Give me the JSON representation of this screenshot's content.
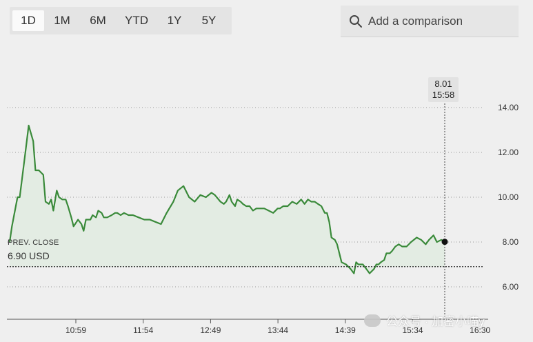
{
  "ranges": [
    "1D",
    "1M",
    "6M",
    "YTD",
    "1Y",
    "5Y"
  ],
  "selected_range": "1D",
  "search": {
    "placeholder": "Add a comparison",
    "icon": "search-icon"
  },
  "tooltip": {
    "value": "8.01",
    "time": "15:58"
  },
  "prev_close": {
    "label": "PREV. CLOSE",
    "value": "6.90 USD"
  },
  "watermark": "公众号 · 加密小喵y",
  "colors": {
    "line": "#3a8a3a",
    "fill": "#e3ece3",
    "background": "#efefef",
    "grid": "#9a9a9a"
  },
  "chart_data": {
    "type": "line",
    "x_ticks": [
      "10:59",
      "11:54",
      "12:49",
      "13:44",
      "14:39",
      "15:34",
      "16:30"
    ],
    "y_ticks": [
      "14.00",
      "12.00",
      "10.00",
      "8.00",
      "6.00"
    ],
    "ylim": [
      4.6,
      14.6
    ],
    "prev_close": 6.9,
    "last_point": {
      "x": "15:58",
      "y": 8.01
    },
    "series": [
      {
        "x": [
          "09:30",
          "09:32",
          "09:37",
          "09:39",
          "09:44",
          "09:47",
          "09:51",
          "09:53",
          "09:56",
          "10:00",
          "10:02",
          "10:05",
          "10:07",
          "10:09",
          "10:12",
          "10:14",
          "10:17",
          "10:20",
          "10:22",
          "10:25",
          "10:27",
          "10:31",
          "10:34",
          "10:36",
          "10:38",
          "10:42",
          "10:44",
          "10:47",
          "10:49",
          "10:52",
          "10:54",
          "10:57",
          "11:01",
          "11:04",
          "11:06",
          "11:09",
          "11:12",
          "11:16",
          "11:20",
          "11:25",
          "11:30",
          "11:35",
          "11:40",
          "11:45",
          "11:50",
          "11:56",
          "12:00",
          "12:05",
          "12:10",
          "12:15",
          "12:20",
          "12:25",
          "12:30",
          "12:33",
          "12:38",
          "12:41",
          "12:43",
          "12:46",
          "12:48",
          "12:51",
          "12:53",
          "12:56",
          "12:58",
          "13:01",
          "13:04",
          "13:07",
          "13:10",
          "13:13",
          "13:17",
          "13:21",
          "13:25",
          "13:29",
          "13:31",
          "13:34",
          "13:38",
          "13:42",
          "13:46",
          "13:50",
          "13:53",
          "13:56",
          "13:59",
          "14:02",
          "14:05",
          "14:08",
          "14:11",
          "14:13",
          "14:15",
          "14:17",
          "14:20",
          "14:22",
          "14:26",
          "14:30",
          "14:34",
          "14:37",
          "14:39",
          "14:41",
          "14:45",
          "14:48",
          "14:51",
          "14:55",
          "14:57",
          "14:59",
          "15:01",
          "15:04",
          "15:06",
          "15:09",
          "15:11",
          "15:14",
          "15:17",
          "15:20",
          "15:24",
          "15:28",
          "15:33",
          "15:37",
          "15:41",
          "15:44",
          "15:48",
          "15:51",
          "15:55",
          "15:58"
        ],
        "y": [
          8.0,
          8.7,
          10.0,
          10.0,
          12.0,
          13.2,
          12.5,
          11.2,
          11.2,
          11.0,
          9.8,
          9.7,
          9.9,
          9.4,
          10.3,
          10.0,
          9.9,
          9.9,
          9.6,
          9.1,
          8.7,
          9.0,
          8.8,
          8.5,
          9.0,
          9.0,
          9.2,
          9.1,
          9.4,
          9.3,
          9.1,
          9.1,
          9.2,
          9.3,
          9.3,
          9.2,
          9.3,
          9.2,
          9.2,
          9.1,
          9.0,
          9.0,
          8.9,
          8.8,
          9.3,
          9.8,
          10.3,
          10.5,
          10.0,
          9.8,
          10.1,
          10.0,
          10.2,
          10.1,
          9.8,
          9.7,
          9.8,
          10.1,
          9.8,
          9.6,
          9.9,
          9.8,
          9.7,
          9.6,
          9.6,
          9.4,
          9.5,
          9.5,
          9.5,
          9.4,
          9.3,
          9.5,
          9.5,
          9.6,
          9.6,
          9.8,
          9.7,
          9.9,
          9.7,
          9.9,
          9.8,
          9.8,
          9.7,
          9.6,
          9.3,
          9.3,
          8.9,
          8.2,
          8.1,
          7.9,
          7.1,
          7.0,
          6.8,
          6.6,
          7.1,
          7.0,
          7.0,
          6.8,
          6.6,
          6.8,
          7.0,
          7.0,
          7.1,
          7.2,
          7.5,
          7.5,
          7.6,
          7.8,
          7.9,
          7.8,
          7.8,
          8.0,
          8.2,
          8.1,
          7.9,
          8.1,
          8.3,
          8.0,
          8.1,
          8.01
        ]
      }
    ]
  }
}
